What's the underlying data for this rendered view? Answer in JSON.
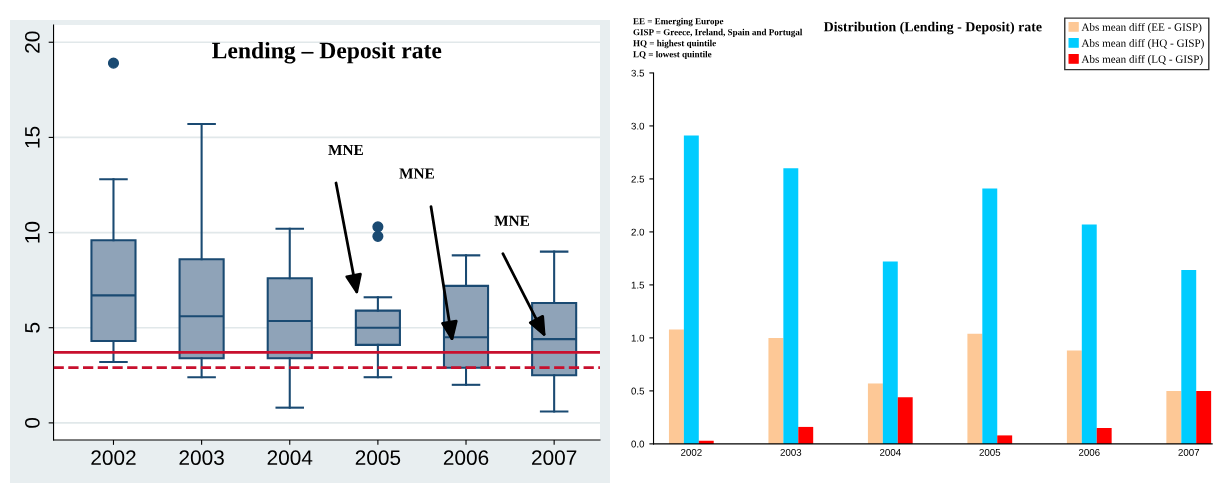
{
  "chart_data": [
    {
      "type": "box",
      "title": "Lending – Deposit rate",
      "categories": [
        "2002",
        "2003",
        "2004",
        "2005",
        "2006",
        "2007"
      ],
      "boxes": [
        {
          "low": 3.2,
          "q1": 4.3,
          "median": 6.7,
          "q3": 9.6,
          "high": 12.8,
          "outliers": [
            18.9
          ]
        },
        {
          "low": 2.4,
          "q1": 3.4,
          "median": 5.6,
          "q3": 8.6,
          "high": 15.7
        },
        {
          "low": 0.8,
          "q1": 3.4,
          "median": 5.35,
          "q3": 7.6,
          "high": 10.2
        },
        {
          "low": 2.4,
          "q1": 4.1,
          "median": 5.0,
          "q3": 5.9,
          "high": 6.6,
          "outliers": [
            10.3,
            9.8
          ]
        },
        {
          "low": 2.0,
          "q1": 2.9,
          "median": 4.5,
          "q3": 7.2,
          "high": 8.8
        },
        {
          "low": 0.6,
          "q1": 2.5,
          "median": 4.4,
          "q3": 6.3,
          "high": 9.0
        }
      ],
      "color": "#8fa3b8",
      "ylim": [
        -0.9,
        20.9
      ],
      "yticks": [
        0,
        5,
        10,
        15,
        20
      ],
      "grid": "y",
      "ref_lines": [
        {
          "axis": "y",
          "value": 3.7,
          "color": "#c8102e",
          "line_style": "solid"
        },
        {
          "axis": "y",
          "value": 2.9,
          "color": "#c8102e",
          "line_style": "dashed"
        }
      ],
      "annotations": [
        "MNE",
        "MNE",
        "MNE"
      ]
    },
    {
      "type": "bar",
      "title": "Distribution (Lending - Deposit) rate",
      "categories": [
        "2002",
        "2003",
        "2004",
        "2005",
        "2006",
        "2007"
      ],
      "series": [
        {
          "name": "Abs mean diff (EE - GISP)",
          "color": "#fdc896",
          "values": [
            1.08,
            1.0,
            0.57,
            1.04,
            0.88,
            0.5
          ]
        },
        {
          "name": "Abs mean diff (HQ - GISP)",
          "color": "#00ccff",
          "values": [
            2.91,
            2.6,
            1.72,
            2.41,
            2.07,
            1.64
          ]
        },
        {
          "name": "Abs mean diff (LQ - GISP)",
          "color": "#ff0000",
          "values": [
            0.03,
            0.16,
            0.44,
            0.08,
            0.15,
            0.5
          ]
        }
      ],
      "ylim": [
        0,
        3.5
      ],
      "yticks": [
        {
          "value": 0,
          "label": "0.0"
        },
        {
          "value": 0.5,
          "label": "0.5"
        },
        {
          "value": 1,
          "label": "1.0"
        },
        {
          "value": 1.5,
          "label": "1.5"
        },
        {
          "value": 2,
          "label": "2.0"
        },
        {
          "value": 2.5,
          "label": "2.5"
        },
        {
          "value": 3,
          "label": "3.0"
        },
        {
          "value": 3.5,
          "label": "3.5"
        }
      ],
      "grid": false,
      "legend": "top right",
      "annotations": [
        "EE = Emerging Europe",
        "GISP = Greece, Ireland, Spain and Portugal",
        "HQ = highest quintile",
        "LQ = lowest quintile"
      ]
    }
  ]
}
